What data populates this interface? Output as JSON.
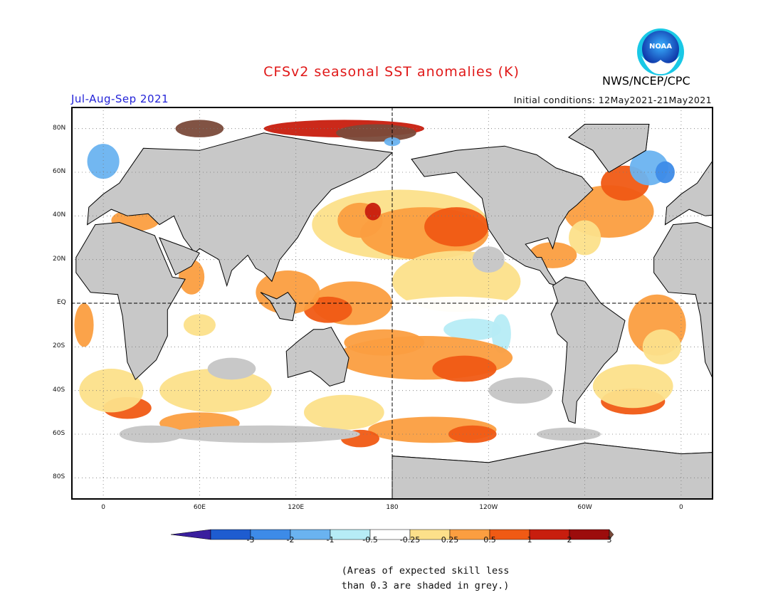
{
  "header": {
    "title": "CFSv2 seasonal SST anomalies (K)",
    "season": "Jul-Aug-Sep 2021",
    "initial_conditions": "Initial conditions: 12May2021-21May2021",
    "agency": "NWS/NCEP/CPC",
    "logo_text": "NOAA"
  },
  "map": {
    "lat_labels": [
      "80N",
      "60N",
      "40N",
      "20N",
      "EQ",
      "20S",
      "40S",
      "60S",
      "80S"
    ],
    "lon_labels": [
      "0",
      "60E",
      "120E",
      "180",
      "120W",
      "60W",
      "0"
    ],
    "land_color": "#c8c8c8",
    "ocean_color": "#ffffff"
  },
  "colorbar": {
    "labels": [
      "-3",
      "-2",
      "-1",
      "-0.5",
      "-0.25",
      "0.25",
      "0.5",
      "1",
      "2",
      "3"
    ],
    "colors": [
      "#3a1f9e",
      "#1e5cd0",
      "#3d8be8",
      "#6ab3f0",
      "#b6ecf6",
      "#ffffff",
      "#fce08a",
      "#fb9e40",
      "#f05a14",
      "#c81e0e",
      "#9c0c0c",
      "#7a4a3a"
    ]
  },
  "note": {
    "line1": "(Areas of expected skill less",
    "line2": "than 0.3 are shaded in grey.)"
  }
}
